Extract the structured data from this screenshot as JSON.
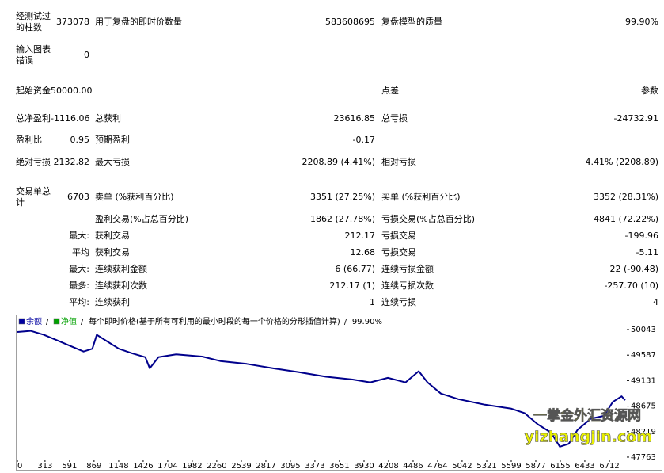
{
  "report": {
    "rows": [
      {
        "left": {
          "label": "经测试过的柱数",
          "value": "373078"
        },
        "mid": {
          "label": "用于复盘的即时价数量",
          "value": "583608695"
        },
        "right": {
          "label": "复盘模型的质量",
          "value": "99.90%"
        }
      },
      {
        "left": {
          "label": "输入图表错误",
          "value": "0"
        }
      },
      {
        "left": {
          "label": "起始资金",
          "value": "50000.00"
        },
        "right": {
          "label": "点差",
          "value": "参数"
        }
      },
      {
        "left": {
          "label": "总净盈利",
          "value": "-1116.06"
        },
        "mid": {
          "label": "总获利",
          "value": "23616.85"
        },
        "right": {
          "label": "总亏损",
          "value": "-24732.91"
        }
      },
      {
        "left": {
          "label": "盈利比",
          "value": "0.95"
        },
        "mid": {
          "label": "预期盈利",
          "value": "-0.17"
        }
      },
      {
        "left": {
          "label": "绝对亏损",
          "value": "2132.82"
        },
        "mid": {
          "label": "最大亏损",
          "value": "2208.89 (4.41%)"
        },
        "right": {
          "label": "相对亏损",
          "value": "4.41% (2208.89)"
        }
      },
      {
        "left": {
          "label": "交易单总计",
          "value": "6703"
        },
        "mid": {
          "label": "卖单 (%获利百分比)",
          "value": "3351 (27.25%)"
        },
        "right": {
          "label": "买单 (%获利百分比)",
          "value": "3352 (28.31%)"
        }
      },
      {
        "mid": {
          "label": "盈利交易(%占总百分比)",
          "value": "1862 (27.78%)"
        },
        "right": {
          "label": "亏损交易(%占总百分比)",
          "value": "4841 (72.22%)"
        }
      },
      {
        "left": {
          "sub_label": "最大:"
        },
        "mid": {
          "label": "获利交易",
          "value": "212.17"
        },
        "right": {
          "label": "亏损交易",
          "value": "-199.96"
        }
      },
      {
        "left": {
          "sub_label": "平均"
        },
        "mid": {
          "label": "获利交易",
          "value": "12.68"
        },
        "right": {
          "label": "亏损交易",
          "value": "-5.11"
        }
      },
      {
        "left": {
          "sub_label": "最大:"
        },
        "mid": {
          "label": "连续获利金额",
          "value": "6 (66.77)"
        },
        "right": {
          "label": "连续亏损金额",
          "value": "22 (-90.48)"
        }
      },
      {
        "left": {
          "sub_label": "最多:"
        },
        "mid": {
          "label": "连续获利次数",
          "value": "212.17 (1)"
        },
        "right": {
          "label": "连续亏损次数",
          "value": "-257.70 (10)"
        }
      },
      {
        "left": {
          "sub_label": "平均:"
        },
        "mid": {
          "label": "连续获利",
          "value": "1"
        },
        "right": {
          "label": "连续亏损",
          "value": "4"
        }
      }
    ]
  },
  "chart_data": {
    "type": "line",
    "legend": [
      {
        "text": "余额",
        "color": "#0000a0"
      },
      {
        "text": "净值",
        "color": "#00a000"
      },
      {
        "text": "每个即时价格(基于所有可利用的最小时段的每一个价格的分形插值计算)"
      },
      {
        "text": "99.90%"
      }
    ],
    "legend_separator": "/",
    "x": [
      0,
      150,
      300,
      450,
      600,
      750,
      850,
      900,
      1000,
      1150,
      1300,
      1450,
      1500,
      1600,
      1800,
      2100,
      2300,
      2600,
      2900,
      3200,
      3500,
      3800,
      4000,
      4200,
      4400,
      4550,
      4650,
      4800,
      5000,
      5300,
      5600,
      5750,
      5900,
      6050,
      6150,
      6250,
      6350,
      6500,
      6650,
      6750,
      6850,
      6890
    ],
    "values": [
      50000,
      50020,
      49950,
      49850,
      49750,
      49650,
      49700,
      49950,
      49850,
      49700,
      49620,
      49550,
      49350,
      49550,
      49600,
      49560,
      49480,
      49430,
      49350,
      49280,
      49200,
      49150,
      49100,
      49180,
      49100,
      49300,
      49100,
      48900,
      48800,
      48700,
      48630,
      48550,
      48350,
      48200,
      47950,
      48000,
      48250,
      48450,
      48500,
      48750,
      48850,
      48780
    ],
    "color": "#00008c",
    "xlim": [
      0,
      6909
    ],
    "ylim": [
      47720,
      50298
    ],
    "xticks": [
      0,
      313,
      591,
      869,
      1148,
      1426,
      1704,
      1982,
      2260,
      2539,
      2817,
      3095,
      3373,
      3651,
      3930,
      4208,
      4486,
      4764,
      5042,
      5321,
      5599,
      5877,
      6155,
      6433,
      6712
    ],
    "yticks": [
      47763,
      48219,
      48675,
      49131,
      49587,
      50043
    ],
    "watermark": [
      "一掌金外汇资源网",
      "yizhangjin.com"
    ]
  }
}
